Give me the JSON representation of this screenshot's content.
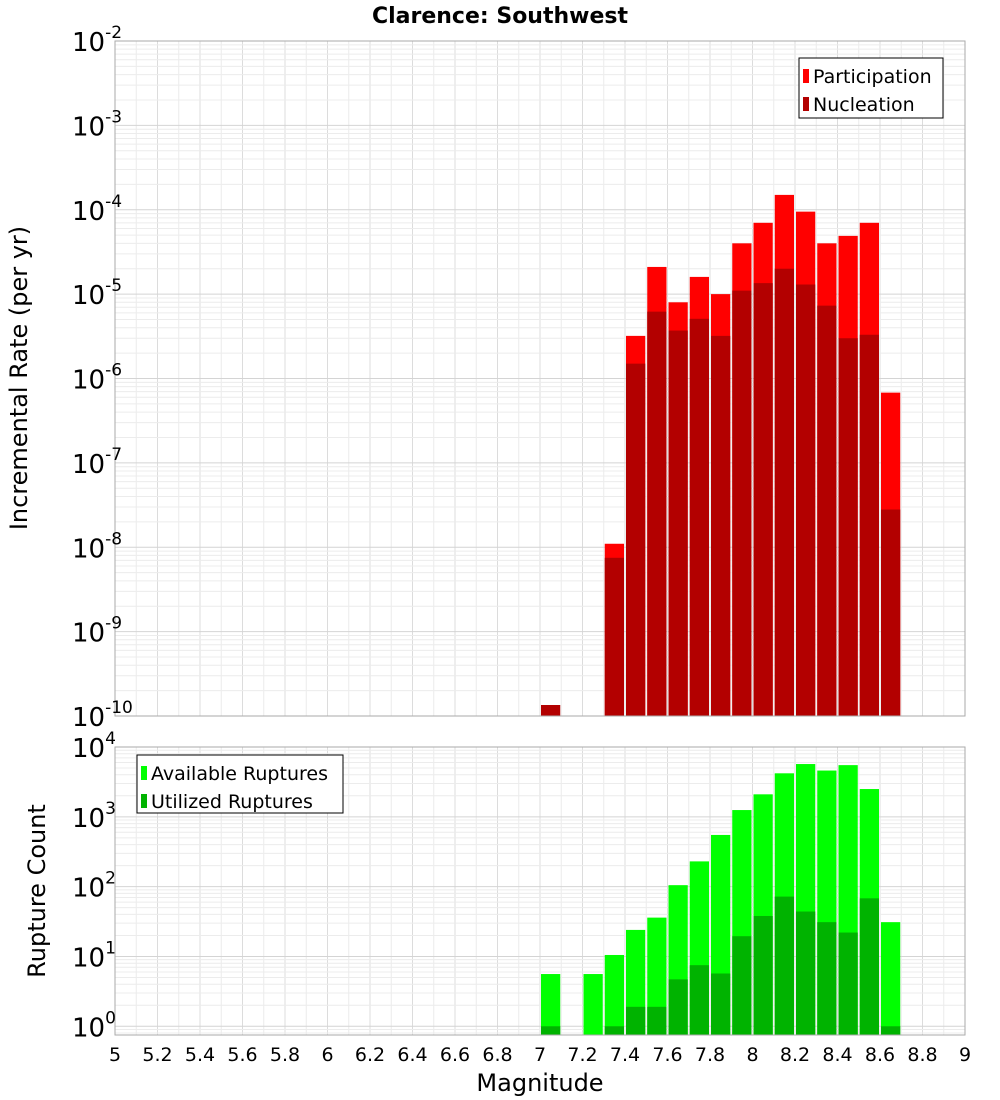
{
  "chart_data": [
    {
      "type": "bar",
      "title": "Clarence: Southwest",
      "ylabel": "Incremental Rate (per yr)",
      "yscale": "log",
      "ylim": [
        1e-10,
        0.01
      ],
      "y_ticks": [
        {
          "base": "10",
          "exp": "-10"
        },
        {
          "base": "10",
          "exp": "-9"
        },
        {
          "base": "10",
          "exp": "-8"
        },
        {
          "base": "10",
          "exp": "-7"
        },
        {
          "base": "10",
          "exp": "-6"
        },
        {
          "base": "10",
          "exp": "-5"
        },
        {
          "base": "10",
          "exp": "-4"
        },
        {
          "base": "10",
          "exp": "-3"
        },
        {
          "base": "10",
          "exp": "-2"
        }
      ],
      "xlim": [
        5,
        9
      ],
      "bin_width": 0.1,
      "legend_position": "top-right",
      "grid": true,
      "series": [
        {
          "name": "Participation",
          "color": "#ff0000",
          "x": [
            7.35,
            7.45,
            7.55,
            7.65,
            7.75,
            7.85,
            7.95,
            8.05,
            8.15,
            8.25,
            8.35,
            8.45,
            8.55,
            8.65
          ],
          "values": [
            1.1e-08,
            3.2e-06,
            2.1e-05,
            8e-06,
            1.6e-05,
            1e-05,
            4e-05,
            7e-05,
            0.00015,
            9.5e-05,
            4e-05,
            4.9e-05,
            7e-05,
            6.8e-07
          ]
        },
        {
          "name": "Nucleation",
          "color": "#b30000",
          "x": [
            7.05,
            7.35,
            7.45,
            7.55,
            7.65,
            7.75,
            7.85,
            7.95,
            8.05,
            8.15,
            8.25,
            8.35,
            8.45,
            8.55,
            8.65
          ],
          "values": [
            1.35e-10,
            7.5e-09,
            1.5e-06,
            6.2e-06,
            3.7e-06,
            5.1e-06,
            3.2e-06,
            1.1e-05,
            1.35e-05,
            2e-05,
            1.3e-05,
            7.3e-06,
            3e-06,
            3.3e-06,
            2.8e-08
          ]
        }
      ]
    },
    {
      "type": "bar",
      "xlabel": "Magnitude",
      "ylabel": "Rupture Count",
      "yscale": "log",
      "ylim": [
        0.75,
        10000
      ],
      "y_ticks": [
        {
          "base": "10",
          "exp": "0"
        },
        {
          "base": "10",
          "exp": "1"
        },
        {
          "base": "10",
          "exp": "2"
        },
        {
          "base": "10",
          "exp": "3"
        },
        {
          "base": "10",
          "exp": "4"
        }
      ],
      "xlim": [
        5,
        9
      ],
      "x_ticks": [
        "5",
        "5.2",
        "5.4",
        "5.6",
        "5.8",
        "6",
        "6.2",
        "6.4",
        "6.6",
        "6.8",
        "7",
        "7.2",
        "7.4",
        "7.6",
        "7.8",
        "8",
        "8.2",
        "8.4",
        "8.6",
        "8.8",
        "9"
      ],
      "bin_width": 0.1,
      "legend_position": "top-left",
      "grid": true,
      "series": [
        {
          "name": "Available Ruptures",
          "color": "#00ff00",
          "x": [
            7.05,
            7.25,
            7.35,
            7.45,
            7.55,
            7.65,
            7.75,
            7.85,
            7.95,
            8.05,
            8.15,
            8.25,
            8.35,
            8.45,
            8.55,
            8.65
          ],
          "values": [
            5.6,
            5.6,
            10.5,
            24,
            36,
            105,
            230,
            550,
            1250,
            2100,
            4200,
            5700,
            4600,
            5500,
            2500,
            31
          ]
        },
        {
          "name": "Utilized Ruptures",
          "color": "#00b300",
          "x": [
            7.05,
            7.35,
            7.45,
            7.55,
            7.65,
            7.75,
            7.85,
            7.95,
            8.05,
            8.15,
            8.25,
            8.35,
            8.45,
            8.55,
            8.65
          ],
          "values": [
            1,
            1,
            1.9,
            1.9,
            4.7,
            7.5,
            5.7,
            19.5,
            38,
            72,
            44,
            31,
            22,
            68,
            1
          ]
        }
      ]
    }
  ]
}
